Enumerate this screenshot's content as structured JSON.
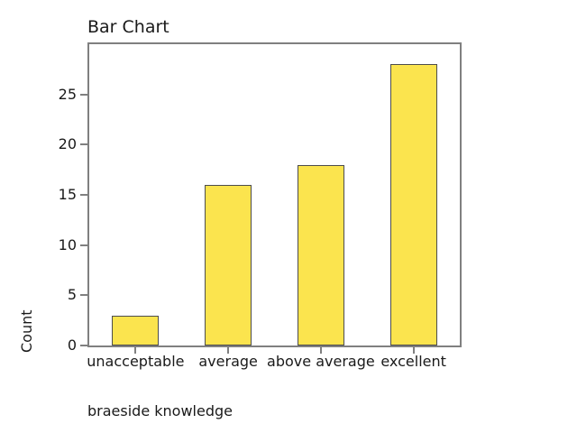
{
  "chart_data": {
    "type": "bar",
    "title": "Bar Chart",
    "categories": [
      "unacceptable",
      "average",
      "above average",
      "excellent"
    ],
    "values": [
      3,
      16,
      18,
      28
    ],
    "xlabel": "braeside knowledge",
    "ylabel": "Count",
    "ylim": [
      0,
      30
    ],
    "yticks": [
      0,
      5,
      10,
      15,
      20,
      25
    ],
    "grid": false,
    "legend_position": "none",
    "colors": {
      "bar_fill": "#FBE44E",
      "bar_border": "#4D4D4D",
      "axis_frame": "#808080",
      "text": "#1A1A1A",
      "background": "#FFFFFF"
    }
  }
}
